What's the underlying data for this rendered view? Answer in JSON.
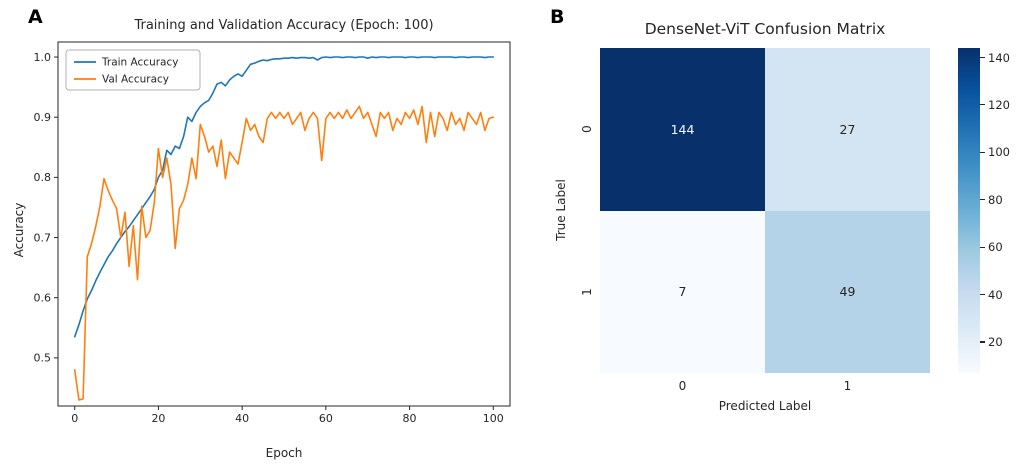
{
  "panels": {
    "a_label": "A",
    "b_label": "B"
  },
  "chart_data": [
    {
      "type": "line",
      "title": "Training and Validation Accuracy (Epoch: 100)",
      "xlabel": "Epoch",
      "ylabel": "Accuracy",
      "xlim": [
        -4,
        104
      ],
      "ylim": [
        0.42,
        1.025
      ],
      "x_ticks": [
        0,
        20,
        40,
        60,
        80,
        100
      ],
      "y_ticks": [
        0.5,
        0.6,
        0.7,
        0.8,
        0.9,
        1.0
      ],
      "grid": false,
      "legend_position": "upper left",
      "x_step": 1,
      "series": [
        {
          "name": "Train Accuracy",
          "color": "#1f77b4",
          "values": [
            0.535,
            0.555,
            0.578,
            0.598,
            0.612,
            0.628,
            0.642,
            0.655,
            0.668,
            0.678,
            0.69,
            0.7,
            0.71,
            0.718,
            0.728,
            0.738,
            0.748,
            0.758,
            0.768,
            0.78,
            0.8,
            0.812,
            0.845,
            0.838,
            0.852,
            0.848,
            0.868,
            0.9,
            0.893,
            0.908,
            0.918,
            0.924,
            0.928,
            0.94,
            0.955,
            0.958,
            0.952,
            0.962,
            0.968,
            0.972,
            0.968,
            0.978,
            0.988,
            0.99,
            0.993,
            0.995,
            0.994,
            0.996,
            0.997,
            0.997,
            0.998,
            0.998,
            0.999,
            0.998,
            0.999,
            0.999,
            0.998,
            0.999,
            0.995,
            0.999,
            1.0,
            0.999,
            1.0,
            1.0,
            0.999,
            1.0,
            1.0,
            0.999,
            1.0,
            1.0,
            0.998,
            1.0,
            0.999,
            1.0,
            1.0,
            0.999,
            1.0,
            1.0,
            1.0,
            0.999,
            1.0,
            1.0,
            0.999,
            1.0,
            1.0,
            1.0,
            0.999,
            1.0,
            1.0,
            1.0,
            1.0,
            0.999,
            1.0,
            1.0,
            0.999,
            1.0,
            1.0,
            1.0,
            0.999,
            1.0,
            1.0
          ]
        },
        {
          "name": "Val Accuracy",
          "color": "#ff7f0e",
          "values": [
            0.48,
            0.43,
            0.432,
            0.668,
            0.69,
            0.718,
            0.752,
            0.798,
            0.778,
            0.762,
            0.748,
            0.7,
            0.742,
            0.652,
            0.72,
            0.63,
            0.752,
            0.7,
            0.712,
            0.758,
            0.848,
            0.8,
            0.832,
            0.788,
            0.682,
            0.748,
            0.762,
            0.788,
            0.832,
            0.798,
            0.888,
            0.868,
            0.842,
            0.852,
            0.818,
            0.862,
            0.798,
            0.842,
            0.832,
            0.822,
            0.858,
            0.898,
            0.878,
            0.888,
            0.868,
            0.858,
            0.898,
            0.908,
            0.898,
            0.908,
            0.898,
            0.908,
            0.888,
            0.898,
            0.908,
            0.878,
            0.898,
            0.908,
            0.898,
            0.828,
            0.898,
            0.908,
            0.898,
            0.908,
            0.898,
            0.912,
            0.898,
            0.908,
            0.918,
            0.898,
            0.908,
            0.888,
            0.868,
            0.908,
            0.898,
            0.908,
            0.878,
            0.898,
            0.888,
            0.908,
            0.898,
            0.912,
            0.888,
            0.918,
            0.858,
            0.908,
            0.868,
            0.908,
            0.898,
            0.878,
            0.908,
            0.888,
            0.898,
            0.878,
            0.908,
            0.898,
            0.888,
            0.908,
            0.878,
            0.898,
            0.9
          ]
        }
      ]
    },
    {
      "type": "heatmap",
      "title": "DenseNet-ViT Confusion Matrix",
      "xlabel": "Predicted Label",
      "ylabel": "True Label",
      "x_tick_labels": [
        "0",
        "1"
      ],
      "y_tick_labels": [
        "0",
        "1"
      ],
      "matrix": [
        [
          144,
          27
        ],
        [
          7,
          49
        ]
      ],
      "cell_colors": [
        [
          "#08306b",
          "#d3e4f3"
        ],
        [
          "#f7fbff",
          "#b4d3e9"
        ]
      ],
      "cell_text_colors": [
        [
          "#f2f7fc",
          "#262626"
        ],
        [
          "#262626",
          "#262626"
        ]
      ],
      "colormap": "Blues",
      "colormap_stops": [
        "#f7fbff",
        "#deebf7",
        "#c6dbef",
        "#9ecae1",
        "#6baed6",
        "#4292c6",
        "#2171b5",
        "#08519c",
        "#08306b"
      ],
      "colorbar_ticks": [
        20,
        40,
        60,
        80,
        100,
        120,
        140
      ]
    }
  ]
}
